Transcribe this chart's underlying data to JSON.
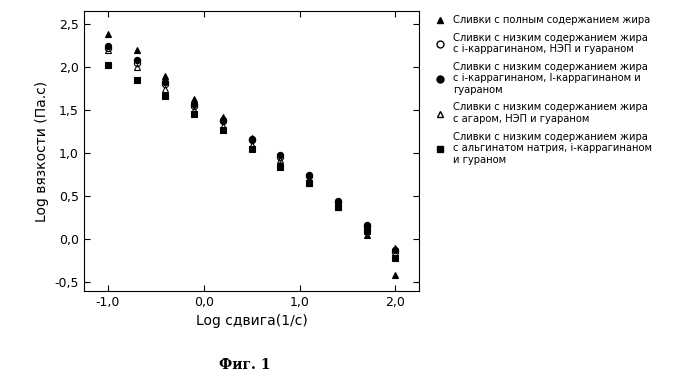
{
  "title": "",
  "xlabel": "Log сдвига(1/с)",
  "ylabel": "Log вязкости (Па.с)",
  "caption": "Фиг. 1",
  "xlim": [
    -1.25,
    2.25
  ],
  "ylim": [
    -0.6,
    2.65
  ],
  "xticks": [
    -1.0,
    0.0,
    1.0,
    2.0
  ],
  "yticks": [
    -0.5,
    0.0,
    0.5,
    1.0,
    1.5,
    2.0,
    2.5
  ],
  "xtick_labels": [
    "-1,0",
    "0,0",
    "1,0",
    "2,0"
  ],
  "ytick_labels": [
    "-0,5",
    "0,0",
    "0,5",
    "1,0",
    "1,5",
    "2,0",
    "2,5"
  ],
  "series": [
    {
      "label": "Сливки с полным содержанием жира",
      "marker": "^",
      "fillstyle": "full",
      "x": [
        -1.0,
        -0.7,
        -0.4,
        -0.1,
        0.2,
        0.5,
        0.8,
        1.1,
        1.4,
        1.7,
        2.0
      ],
      "y": [
        2.38,
        2.2,
        1.9,
        1.63,
        1.42,
        1.18,
        0.88,
        0.65,
        0.37,
        0.05,
        -0.42
      ]
    },
    {
      "label": "Сливки с низким содержанием жира\nс i-каррагинаном, НЭП и гуараном",
      "marker": "o",
      "fillstyle": "none",
      "x": [
        -1.0,
        -0.7,
        -0.4,
        -0.1,
        0.2,
        0.5,
        0.8,
        1.1,
        1.4,
        1.7,
        2.0
      ],
      "y": [
        2.22,
        2.05,
        1.8,
        1.55,
        1.37,
        1.15,
        0.96,
        0.73,
        0.43,
        0.15,
        -0.15
      ]
    },
    {
      "label": "Сливки с низким содержанием жира\nс i-каррагинаном, l-каррагинаном и\nгуараном",
      "marker": "o",
      "fillstyle": "full",
      "x": [
        -1.0,
        -0.7,
        -0.4,
        -0.1,
        0.2,
        0.5,
        0.8,
        1.1,
        1.4,
        1.7,
        2.0
      ],
      "y": [
        2.25,
        2.08,
        1.83,
        1.57,
        1.39,
        1.17,
        0.98,
        0.75,
        0.45,
        0.17,
        -0.12
      ]
    },
    {
      "label": "Сливки с низким содержанием жира\nс агаром, НЭП и гуараном",
      "marker": "^",
      "fillstyle": "none",
      "x": [
        -1.0,
        -0.7,
        -0.4,
        -0.1,
        0.2,
        0.5,
        0.8,
        1.1,
        1.4,
        1.7,
        2.0
      ],
      "y": [
        2.2,
        2.0,
        1.75,
        1.5,
        1.32,
        1.1,
        0.92,
        0.7,
        0.42,
        0.12,
        -0.1
      ]
    },
    {
      "label": "Сливки с низким содержанием жира\nс альгинатом натрия, i-каррагинаном\nи гураном",
      "marker": "s",
      "fillstyle": "full",
      "x": [
        -1.0,
        -0.7,
        -0.4,
        -0.1,
        0.2,
        0.5,
        0.8,
        1.1,
        1.4,
        1.7,
        2.0
      ],
      "y": [
        2.02,
        1.85,
        1.67,
        1.45,
        1.27,
        1.05,
        0.84,
        0.65,
        0.38,
        0.1,
        -0.22
      ]
    }
  ],
  "legend_labels": [
    "Сливки с полным содержанием жира",
    "Сливки с низким содержанием жира\nс i-каррагинаном, НЭП и гуараном",
    "Сливки с низким содержанием жира\nс i-каррагинаном, l-каррагинаном и\nгуараном",
    "Сливки с низким содержанием жира\nс агаром, НЭП и гуараном",
    "Сливки с низким содержанием жира\nс альгинатом натрия, i-каррагинаном\nи гураном"
  ],
  "legend_markers": [
    "^",
    "o",
    "o",
    "^",
    "s"
  ],
  "legend_fillstyles": [
    "full",
    "none",
    "full",
    "none",
    "full"
  ],
  "background_color": "#ffffff"
}
